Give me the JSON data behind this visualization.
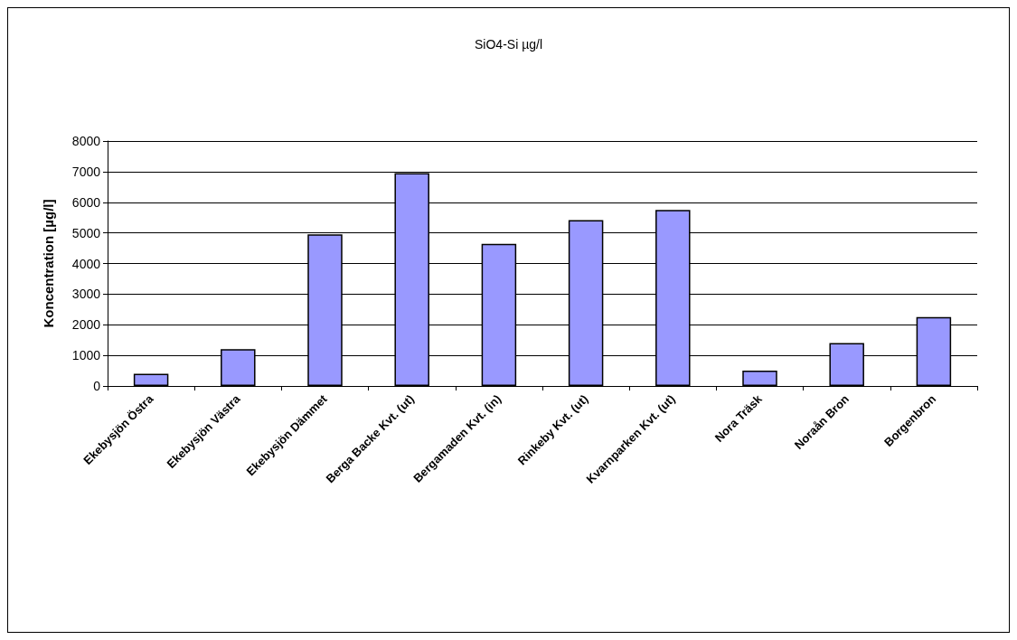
{
  "chart_data": {
    "type": "bar",
    "title": "SiO4-Si µg/l",
    "ylabel": "Koncentration [µg/l]",
    "categories": [
      "Ekebysjön Östra",
      "Ekebysjön Västra",
      "Ekebysjön Dämmet",
      "Berga Backe Kvt. (ut)",
      "Bergamaden Kvt. (in)",
      "Rinkeby Kvt. (ut)",
      "Kvarnparken Kvt. (ut)",
      "Nora Träsk",
      "Noraån Bron",
      "Borgenbron"
    ],
    "values": [
      400,
      1200,
      4950,
      6950,
      4640,
      5420,
      5750,
      500,
      1400,
      2250
    ],
    "color": "#9999ff",
    "ylim": [
      0,
      8000
    ],
    "yticks": [
      0,
      1000,
      2000,
      3000,
      4000,
      5000,
      6000,
      7000,
      8000
    ],
    "grid": "y"
  }
}
